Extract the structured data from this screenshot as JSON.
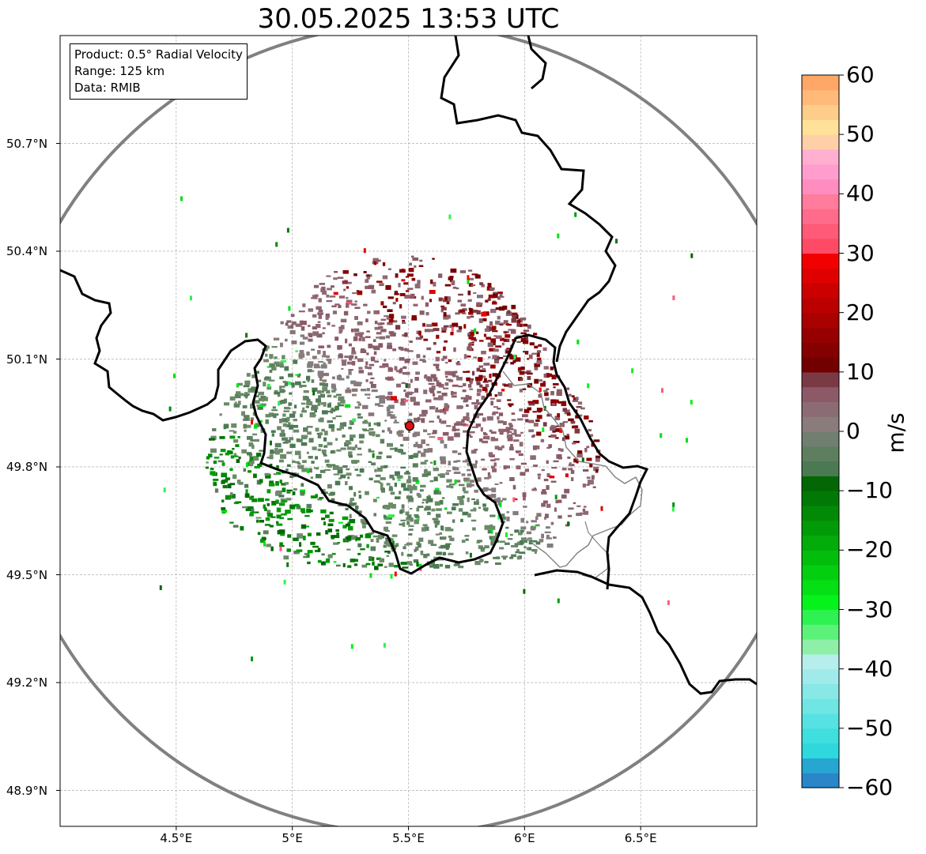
{
  "title": "30.05.2025 13:53 UTC",
  "info": {
    "product": "Product: 0.5° Radial Velocity",
    "range": "Range: 125 km",
    "data": "Data: RMIB"
  },
  "map": {
    "lon_range": [
      4.0,
      7.0
    ],
    "lat_range": [
      48.8,
      51.0
    ],
    "radar_site": {
      "lon": 5.505,
      "lat": 49.914
    },
    "lat_ticks": [
      {
        "value": 50.7,
        "label": "50.7°N"
      },
      {
        "value": 50.4,
        "label": "50.4°N"
      },
      {
        "value": 50.1,
        "label": "50.1°N"
      },
      {
        "value": 49.8,
        "label": "49.8°N"
      },
      {
        "value": 49.5,
        "label": "49.5°N"
      },
      {
        "value": 49.2,
        "label": "49.2°N"
      },
      {
        "value": 48.9,
        "label": "48.9°N"
      }
    ],
    "lon_ticks": [
      {
        "value": 4.5,
        "label": "4.5°E"
      },
      {
        "value": 5.0,
        "label": "5°E"
      },
      {
        "value": 5.5,
        "label": "5.5°E"
      },
      {
        "value": 6.0,
        "label": "6°E"
      },
      {
        "value": 6.5,
        "label": "6.5°E"
      }
    ]
  },
  "colorbar": {
    "unit": "m/s",
    "min": -60,
    "max": 60,
    "ticks": [
      {
        "value": 60,
        "label": "60"
      },
      {
        "value": 50,
        "label": "50"
      },
      {
        "value": 40,
        "label": "40"
      },
      {
        "value": 30,
        "label": "30"
      },
      {
        "value": 20,
        "label": "20"
      },
      {
        "value": 10,
        "label": "10"
      },
      {
        "value": 0,
        "label": "0"
      },
      {
        "value": -10,
        "label": "−10"
      },
      {
        "value": -20,
        "label": "−20"
      },
      {
        "value": -30,
        "label": "−30"
      },
      {
        "value": -40,
        "label": "−40"
      },
      {
        "value": -50,
        "label": "−50"
      },
      {
        "value": -60,
        "label": "−60"
      }
    ],
    "colors": [
      "#2a86c8",
      "#27a6d2",
      "#2ed8dc",
      "#3fdedf",
      "#56e2e2",
      "#6fe5e4",
      "#87e8e6",
      "#a0ebe9",
      "#b6eeeb",
      "#8ef0a6",
      "#5cf27a",
      "#2ef252",
      "#06f21b",
      "#04e014",
      "#03cf10",
      "#03bd0c",
      "#03ac0a",
      "#029b08",
      "#028a06",
      "#027906",
      "#026704",
      "#4b7a52",
      "#5d7f5f",
      "#707f70",
      "#8a7c7b",
      "#8b6c75",
      "#8c5a66",
      "#7a3a44",
      "#730000",
      "#850000",
      "#970000",
      "#a90000",
      "#bb0000",
      "#cd0000",
      "#df0000",
      "#f20000",
      "#ff4a66",
      "#ff5a78",
      "#ff6b8a",
      "#ff7c9c",
      "#ff8dbf",
      "#ff9ece",
      "#ffafd0",
      "#ffd0a8",
      "#ffe19a",
      "#ffcd8a",
      "#ffba7a",
      "#ffa767"
    ]
  }
}
